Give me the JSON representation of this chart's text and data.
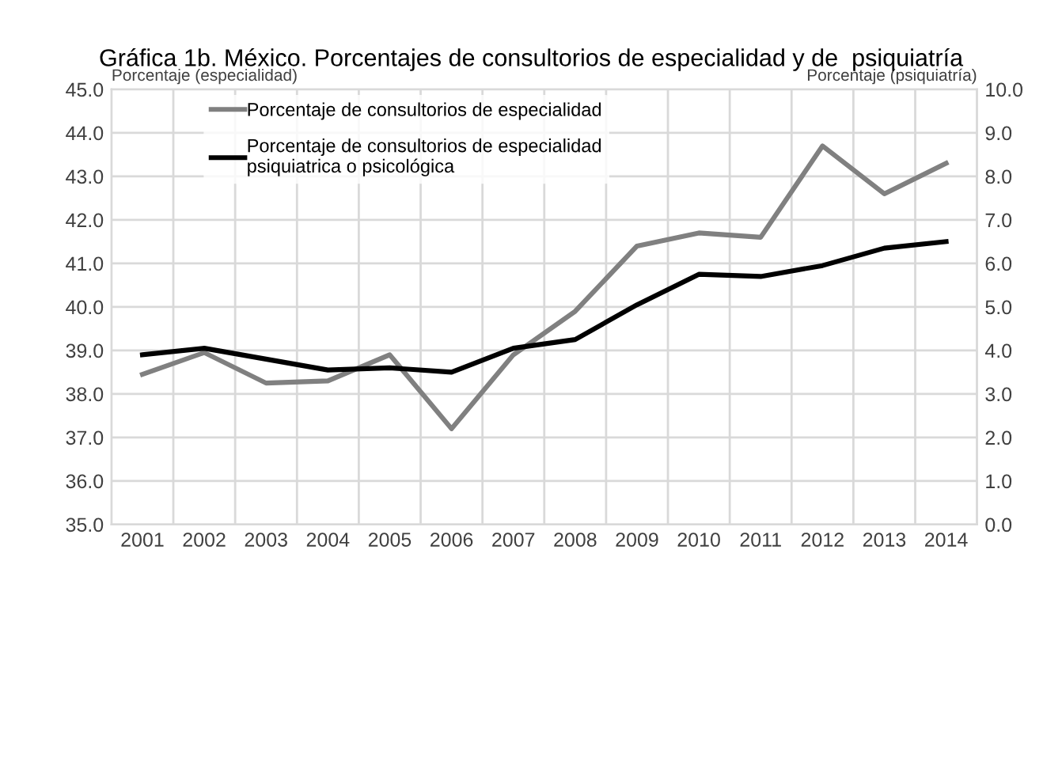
{
  "chart_data": {
    "type": "line",
    "title": "Gráfica 1b. México. Porcentajes de consultorios de especialidad y de  psiquiatría",
    "ylabel": "Porcentaje (especialidad)",
    "y2label": "Porcentaje (psiquiatría)",
    "categories": [
      "2001",
      "2002",
      "2003",
      "2004",
      "2005",
      "2006",
      "2007",
      "2008",
      "2009",
      "2010",
      "2011",
      "2012",
      "2013",
      "2014"
    ],
    "series": [
      {
        "name": "Porcentaje de consultorios de especialidad",
        "color": "#808080",
        "values": [
          38.45,
          38.95,
          38.25,
          38.3,
          38.9,
          37.2,
          38.9,
          39.9,
          41.4,
          41.7,
          41.6,
          43.7,
          42.6,
          43.3
        ]
      },
      {
        "name": "Porcentaje de consultorios de especialidad\npsiquiatrica o psicológica",
        "color": "#000000",
        "axis": "y2",
        "values": [
          3.9,
          4.05,
          3.8,
          3.55,
          3.6,
          3.5,
          4.05,
          4.25,
          5.05,
          5.75,
          5.7,
          5.95,
          6.35,
          6.5
        ]
      }
    ],
    "ylim": [
      35,
      45
    ],
    "yticks": [
      {
        "value": 35,
        "label": "35.0"
      },
      {
        "value": 36,
        "label": "36.0"
      },
      {
        "value": 37,
        "label": "37.0"
      },
      {
        "value": 38,
        "label": "38.0"
      },
      {
        "value": 39,
        "label": "39.0"
      },
      {
        "value": 40,
        "label": "40.0"
      },
      {
        "value": 41,
        "label": "41.0"
      },
      {
        "value": 42,
        "label": "42.0"
      },
      {
        "value": 43,
        "label": "43.0"
      },
      {
        "value": 44,
        "label": "44.0"
      },
      {
        "value": 45,
        "label": "45.0"
      }
    ],
    "y2lim": [
      0,
      10
    ],
    "y2ticks": [
      {
        "value": 0,
        "label": "0.0"
      },
      {
        "value": 1,
        "label": "1.0"
      },
      {
        "value": 2,
        "label": "2.0"
      },
      {
        "value": 3,
        "label": "3.0"
      },
      {
        "value": 4,
        "label": "4.0"
      },
      {
        "value": 5,
        "label": "5.0"
      },
      {
        "value": 6,
        "label": "6.0"
      },
      {
        "value": 7,
        "label": "7.0"
      },
      {
        "value": 8,
        "label": "8.0"
      },
      {
        "value": 9,
        "label": "9.0"
      },
      {
        "value": 10,
        "label": "10.0"
      }
    ],
    "grid": true,
    "legend": "top left",
    "marker": "none",
    "line_style": "solid"
  }
}
